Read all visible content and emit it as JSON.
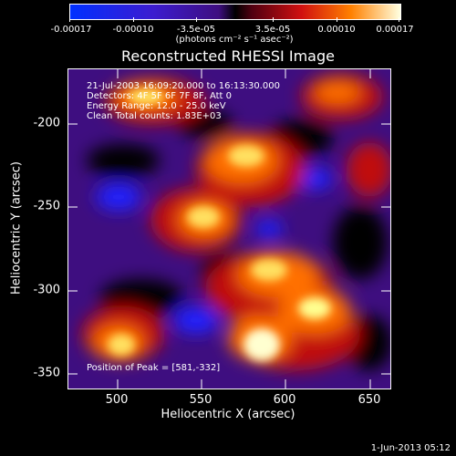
{
  "colorbar": {
    "tick_labels": [
      "-0.00017",
      "-0.00010",
      "-3.5e-05",
      "3.5e-05",
      "0.00010",
      "0.00017"
    ],
    "units": "(photons cm⁻² s⁻¹ asec⁻²)"
  },
  "title": "Reconstructed RHESSI Image",
  "info": {
    "line1": "21-Jul-2003 16:09:20.000 to 16:13:30.000",
    "line2": "Detectors: 4F 5F 6F 7F 8F, Att 0",
    "line3": "Energy Range: 12.0 - 25.0 keV",
    "line4": "Clean     Total counts: 1.83E+03",
    "peak": "Position of Peak = [581,-332]"
  },
  "axes": {
    "xlabel": "Heliocentric X (arcsec)",
    "ylabel": "Heliocentric Y (arcsec)",
    "xticks": [
      "500",
      "550",
      "600",
      "650"
    ],
    "yticks": [
      "-200",
      "-250",
      "-300",
      "-350"
    ]
  },
  "footer": "1-Jun-2013 05:12",
  "colors": {
    "negative": "#2020ff",
    "background": "#3e0e80",
    "positive_low": "#d01010",
    "positive_mid": "#ff8000",
    "positive_high": "#ffffc0"
  },
  "chart_data": {
    "type": "heatmap",
    "title": "Reconstructed RHESSI Image",
    "xlabel": "Heliocentric X (arcsec)",
    "ylabel": "Heliocentric Y (arcsec)",
    "xlim": [
      470,
      662
    ],
    "ylim": [
      -362,
      -170
    ],
    "colorbar_range": [
      -0.00017,
      0.00017
    ],
    "peak": [
      581,
      -332
    ]
  }
}
